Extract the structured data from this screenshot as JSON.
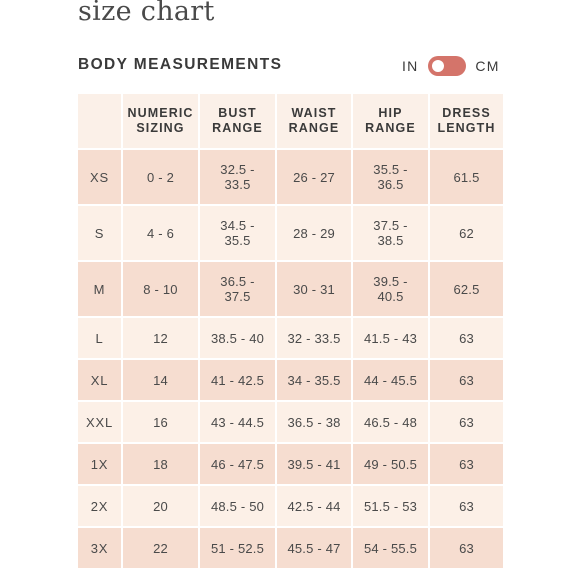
{
  "page": {
    "title": "size chart"
  },
  "section": {
    "heading": "BODY MEASUREMENTS"
  },
  "unit_toggle": {
    "left_label": "IN",
    "right_label": "CM",
    "active_color": "#d4746a"
  },
  "table": {
    "headers": {
      "size": "",
      "numeric": [
        "NUMERIC",
        "SIZING"
      ],
      "bust": [
        "BUST",
        "RANGE"
      ],
      "waist": [
        "WAIST",
        "RANGE"
      ],
      "hip": [
        "HIP",
        "RANGE"
      ],
      "dress": [
        "DRESS",
        "LENGTH"
      ]
    },
    "rows": [
      {
        "size": "XS",
        "numeric": "0 - 2",
        "bust": [
          "32.5 -",
          "33.5"
        ],
        "waist": "26 - 27",
        "hip": [
          "35.5 -",
          "36.5"
        ],
        "dress": "61.5"
      },
      {
        "size": "S",
        "numeric": "4 - 6",
        "bust": [
          "34.5 -",
          "35.5"
        ],
        "waist": "28 - 29",
        "hip": [
          "37.5 -",
          "38.5"
        ],
        "dress": "62"
      },
      {
        "size": "M",
        "numeric": "8 - 10",
        "bust": [
          "36.5 -",
          "37.5"
        ],
        "waist": "30 - 31",
        "hip": [
          "39.5 -",
          "40.5"
        ],
        "dress": "62.5"
      },
      {
        "size": "L",
        "numeric": "12",
        "bust": "38.5 - 40",
        "waist": "32 - 33.5",
        "hip": "41.5 - 43",
        "dress": "63"
      },
      {
        "size": "XL",
        "numeric": "14",
        "bust": "41 - 42.5",
        "waist": "34 - 35.5",
        "hip": "44 - 45.5",
        "dress": "63"
      },
      {
        "size": "XXL",
        "numeric": "16",
        "bust": "43 - 44.5",
        "waist": "36.5 - 38",
        "hip": "46.5 - 48",
        "dress": "63"
      },
      {
        "size": "1X",
        "numeric": "18",
        "bust": "46 - 47.5",
        "waist": "39.5 - 41",
        "hip": "49 - 50.5",
        "dress": "63"
      },
      {
        "size": "2X",
        "numeric": "20",
        "bust": "48.5 - 50",
        "waist": "42.5 - 44",
        "hip": "51.5 - 53",
        "dress": "63"
      },
      {
        "size": "3X",
        "numeric": "22",
        "bust": "51 - 52.5",
        "waist": "45.5 - 47",
        "hip": "54 - 55.5",
        "dress": "63"
      }
    ],
    "colors": {
      "header_bg": "#fbf0e8",
      "row_peach": "#f6ddd0",
      "row_cream": "#fcf0e7"
    }
  }
}
